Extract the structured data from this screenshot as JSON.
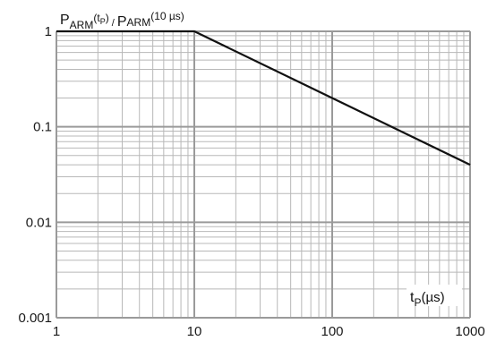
{
  "chart_data": {
    "type": "line",
    "xscale": "log",
    "yscale": "log",
    "xlim": [
      1,
      1000
    ],
    "ylim": [
      0.001,
      1
    ],
    "grid": true,
    "x_tick_labels": [
      "1",
      "10",
      "100",
      "1000"
    ],
    "y_tick_labels": [
      "1",
      "0.1",
      "0.01",
      "0.001"
    ],
    "ylabel": {
      "p1": "P",
      "sub1": "ARM",
      "arg1_open": "(t",
      "arg1_sub": "P",
      "arg1_close": ")",
      "slash": " / ",
      "p2": "P",
      "sub2": "ARM",
      "arg2": "(10 µs)"
    },
    "xlabel": {
      "t": "t",
      "sub": "P",
      "unit": "(µs)"
    },
    "series": [
      {
        "x": [
          1,
          10,
          1000
        ],
        "y": [
          1,
          1,
          0.04
        ]
      }
    ],
    "colors": {
      "line": "#111111",
      "grid_major": "#9a9a9a",
      "grid_minor": "#b8b8b8"
    }
  }
}
